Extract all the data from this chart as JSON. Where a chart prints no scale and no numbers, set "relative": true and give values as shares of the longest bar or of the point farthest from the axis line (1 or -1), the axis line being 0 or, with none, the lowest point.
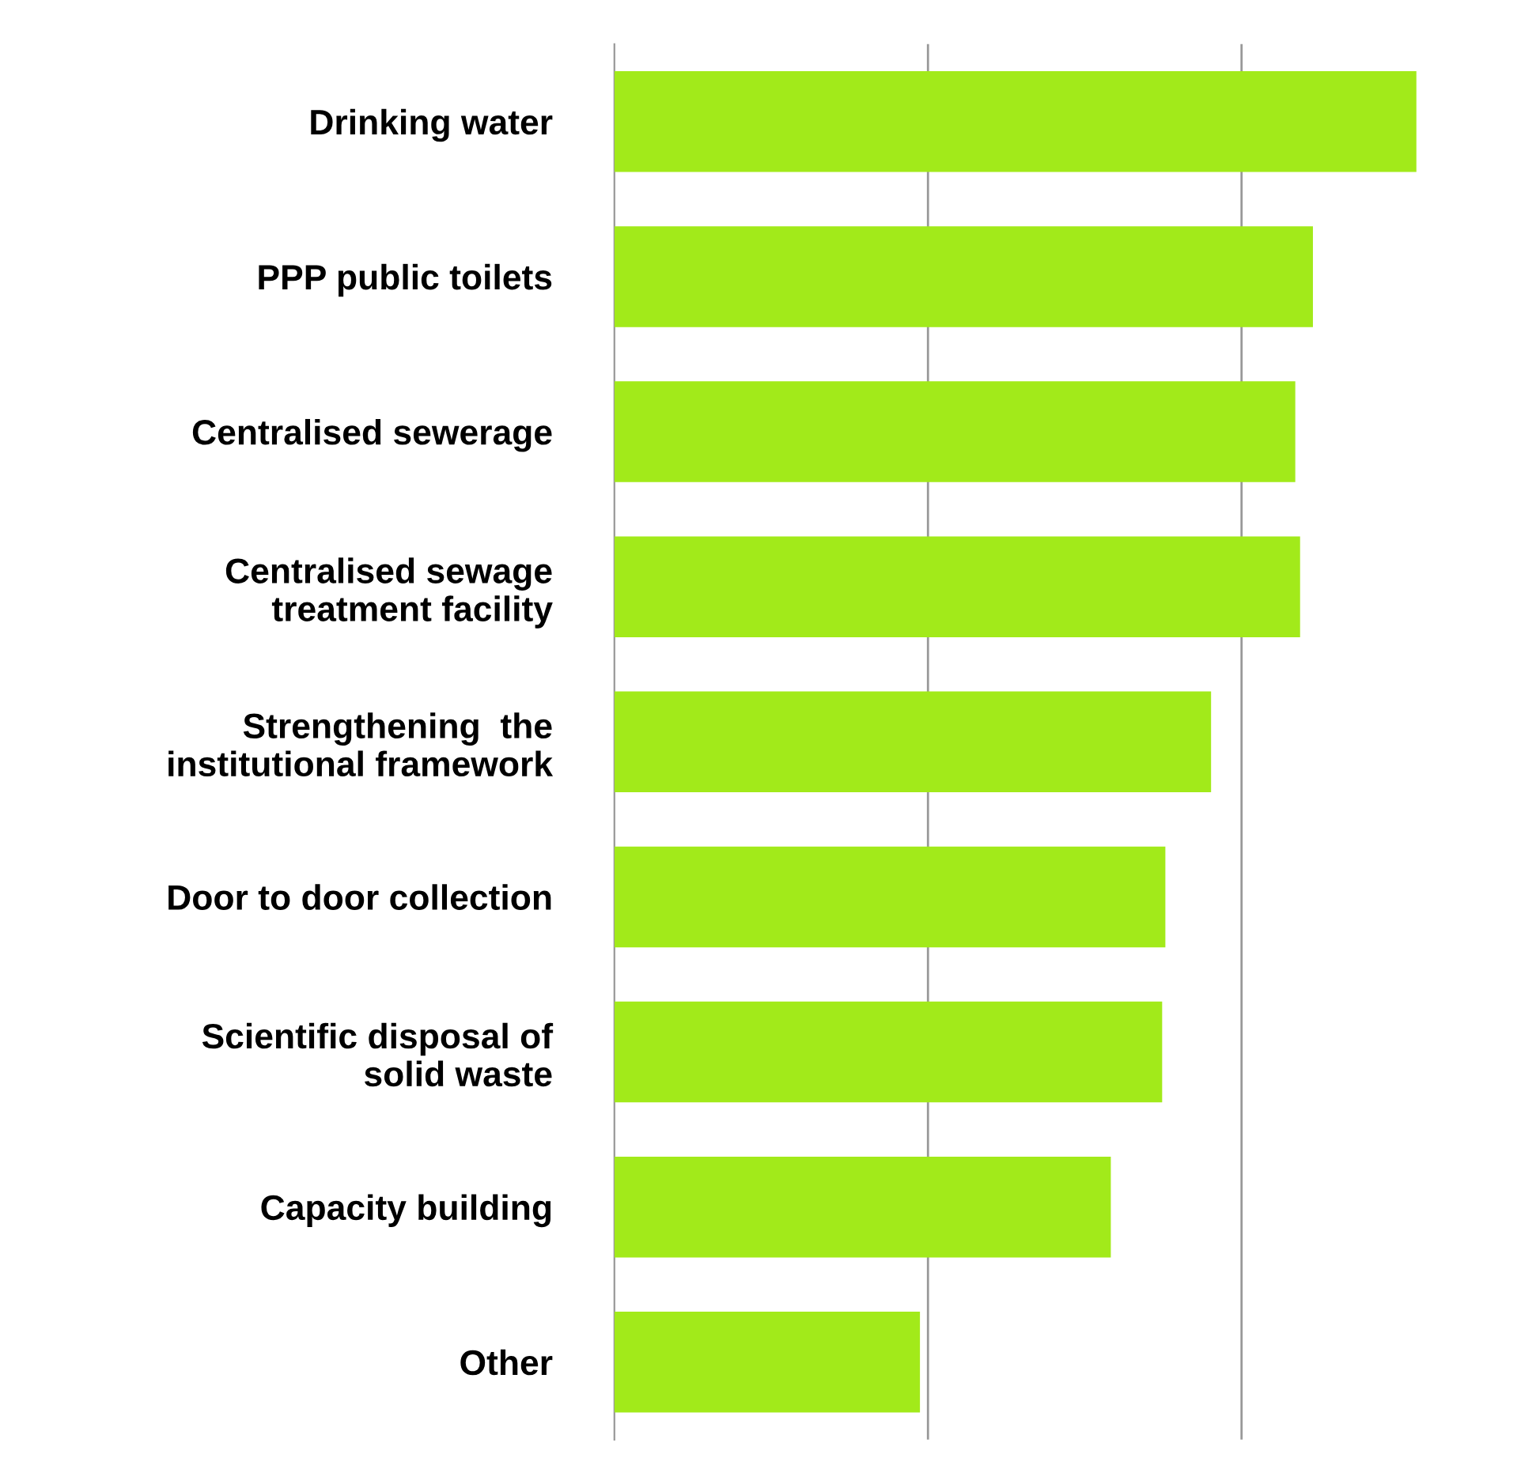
{
  "chart_data": {
    "type": "bar",
    "orientation": "horizontal",
    "relative": true,
    "color": "#a2ea1a",
    "ref_lines": [
      {
        "axis": "x",
        "value": 0.391,
        "color": "#999999"
      },
      {
        "axis": "x",
        "value": 0.782,
        "color": "#999999"
      }
    ],
    "categories": [
      "Drinking water",
      "PPP public toilets",
      "Centralised sewerage",
      "Centralised sewage\ntreatment facility",
      "Strengthening  the\ninstitutional framework",
      "Door to door collection",
      "Scientific disposal of\nsolid waste",
      "Capacity building",
      "Other"
    ],
    "values": [
      1,
      0.871,
      0.849,
      0.855,
      0.744,
      0.687,
      0.683,
      0.619,
      0.381
    ]
  }
}
